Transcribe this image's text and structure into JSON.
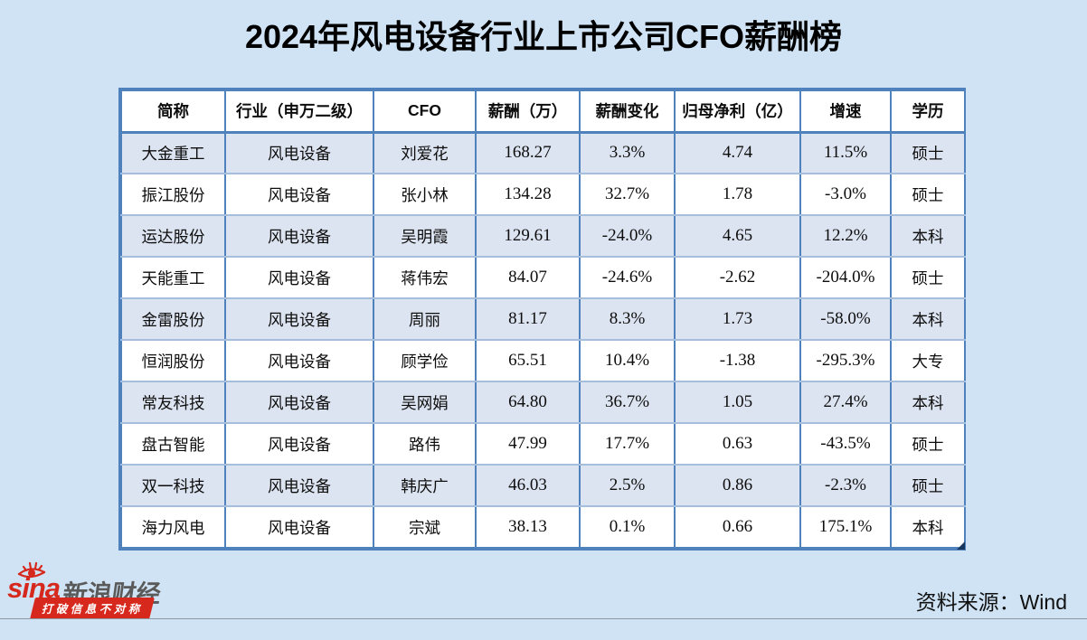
{
  "title": "2024年风电设备行业上市公司CFO薪酬榜",
  "chart_data": {
    "type": "table",
    "title": "2024年风电设备行业上市公司CFO薪酬榜",
    "columns": [
      "简称",
      "行业（申万二级）",
      "CFO",
      "薪酬（万）",
      "薪酬变化",
      "归母净利（亿）",
      "增速",
      "学历"
    ],
    "rows": [
      [
        "大金重工",
        "风电设备",
        "刘爱花",
        "168.27",
        "3.3%",
        "4.74",
        "11.5%",
        "硕士"
      ],
      [
        "振江股份",
        "风电设备",
        "张小林",
        "134.28",
        "32.7%",
        "1.78",
        "-3.0%",
        "硕士"
      ],
      [
        "运达股份",
        "风电设备",
        "吴明霞",
        "129.61",
        "-24.0%",
        "4.65",
        "12.2%",
        "本科"
      ],
      [
        "天能重工",
        "风电设备",
        "蒋伟宏",
        "84.07",
        "-24.6%",
        "-2.62",
        "-204.0%",
        "硕士"
      ],
      [
        "金雷股份",
        "风电设备",
        "周丽",
        "81.17",
        "8.3%",
        "1.73",
        "-58.0%",
        "本科"
      ],
      [
        "恒润股份",
        "风电设备",
        "顾学俭",
        "65.51",
        "10.4%",
        "-1.38",
        "-295.3%",
        "大专"
      ],
      [
        "常友科技",
        "风电设备",
        "吴网娟",
        "64.80",
        "36.7%",
        "1.05",
        "27.4%",
        "本科"
      ],
      [
        "盘古智能",
        "风电设备",
        "路伟",
        "47.99",
        "17.7%",
        "0.63",
        "-43.5%",
        "硕士"
      ],
      [
        "双一科技",
        "风电设备",
        "韩庆广",
        "46.03",
        "2.5%",
        "0.86",
        "-2.3%",
        "硕士"
      ],
      [
        "海力风电",
        "风电设备",
        "宗斌",
        "38.13",
        "0.1%",
        "0.66",
        "175.1%",
        "本科"
      ]
    ],
    "numeric_columns": [
      3,
      4,
      5,
      6
    ],
    "source": "Wind"
  },
  "footer": {
    "source_label": "资料来源：Wind",
    "logo": {
      "wordmark": "sina",
      "brand": "新浪财经",
      "slogan": "打破信息不对称"
    }
  },
  "colors": {
    "page_bg": "#cfe3f4",
    "table_border": "#4f81bd",
    "row_alt_bg": "#dde4f1",
    "row_separator": "#a6bedd",
    "logo_red": "#d7281d",
    "handle_dark": "#17375e"
  }
}
